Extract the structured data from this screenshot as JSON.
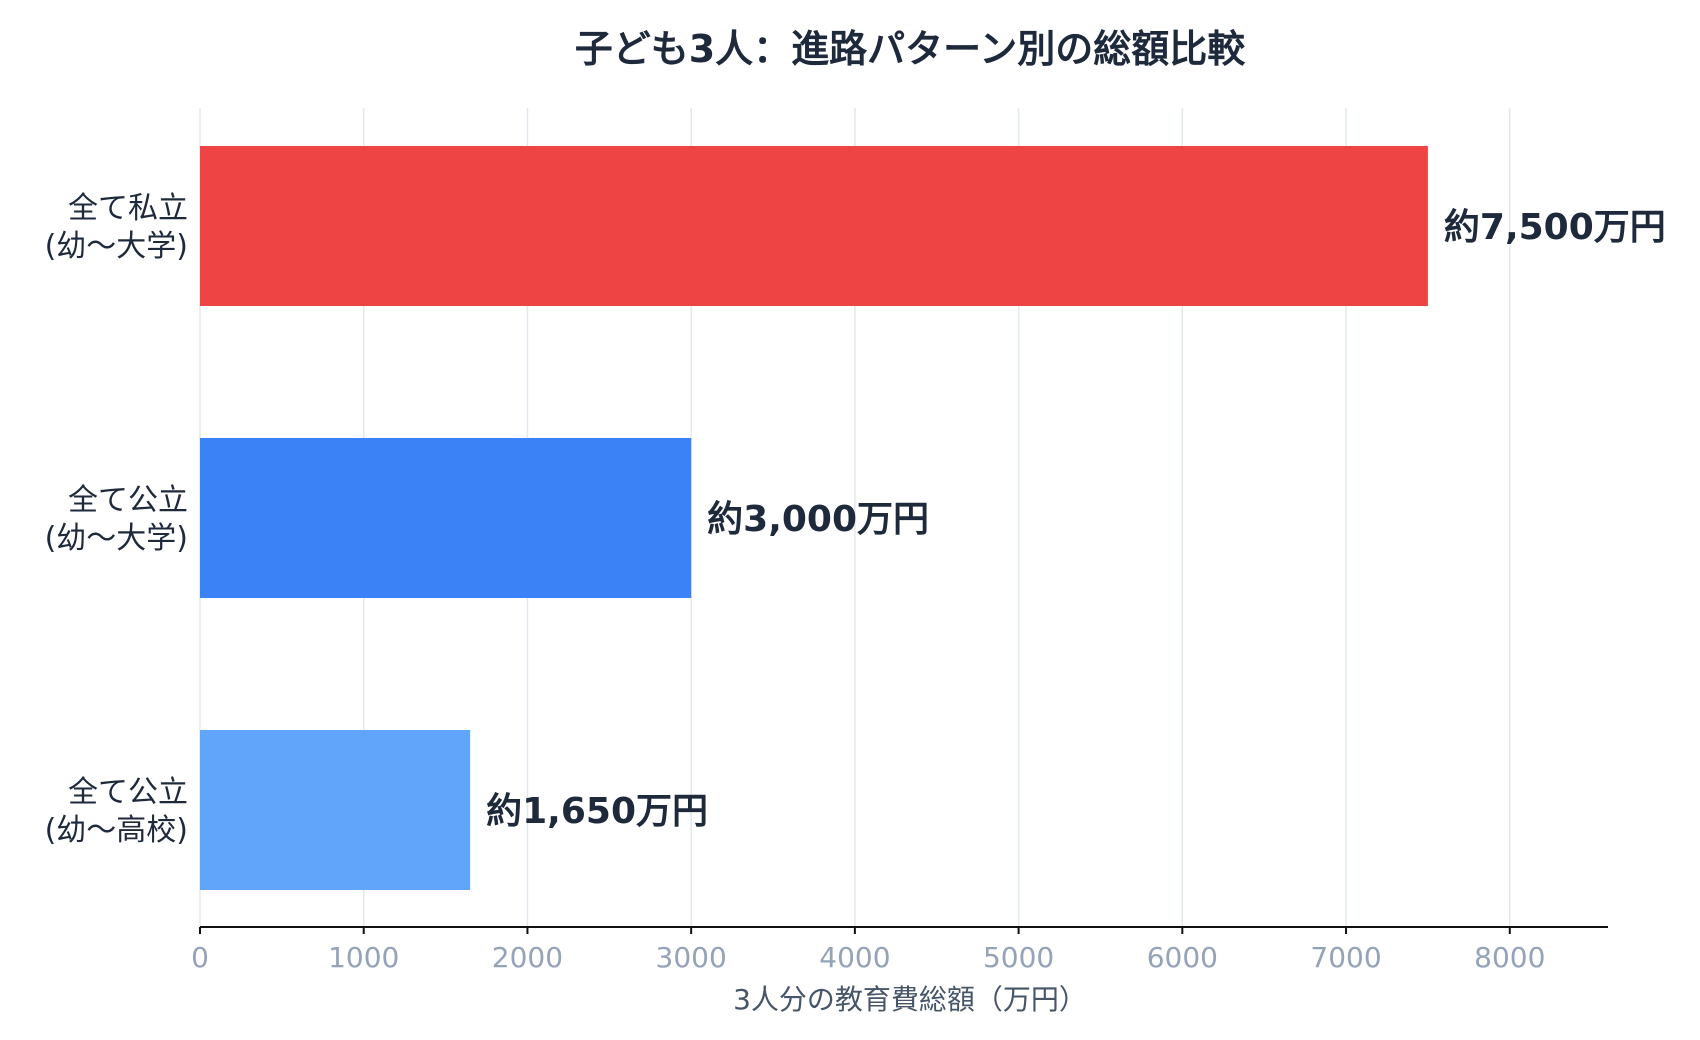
{
  "chart_data": {
    "type": "bar",
    "orientation": "horizontal",
    "title": "子ども3人：進路パターン別の総額比較",
    "xlabel": "3人分の教育費総額（万円）",
    "ylabel": "",
    "xlim": [
      0,
      8600
    ],
    "xticks": [
      0,
      1000,
      2000,
      3000,
      4000,
      5000,
      6000,
      7000,
      8000
    ],
    "grid": "vertical",
    "categories": [
      {
        "line1": "全て私立",
        "line2": "(幼〜大学)"
      },
      {
        "line1": "全て公立",
        "line2": "(幼〜大学)"
      },
      {
        "line1": "全て公立",
        "line2": "(幼〜高校)"
      }
    ],
    "values": [
      7500,
      3000,
      1650
    ],
    "value_labels": [
      "約7,500万円",
      "約3,000万円",
      "約1,650万円"
    ],
    "colors": [
      "#ef4444",
      "#3b82f6",
      "#60a5fa"
    ]
  }
}
